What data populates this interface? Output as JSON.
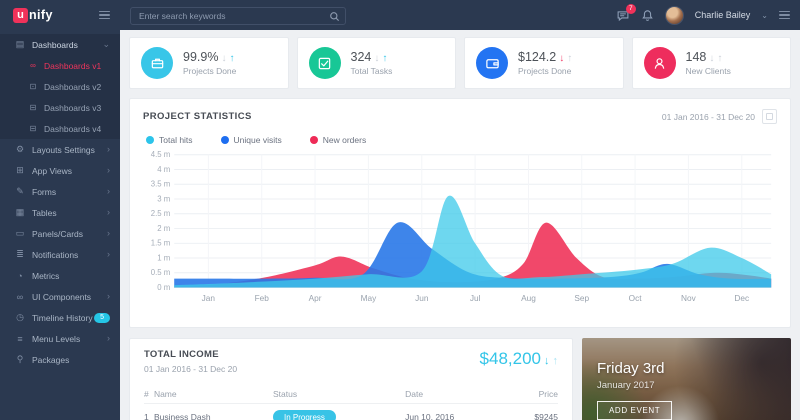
{
  "app": {
    "logo_mark": "u",
    "logo_rest": "nify"
  },
  "header": {
    "search_placeholder": "Enter search keywords",
    "messages_badge": "7",
    "user_name": "Charlie Bailey"
  },
  "sidebar": {
    "items": [
      {
        "label": "Dashboards",
        "icon": "grid",
        "chevron": "down",
        "children": [
          {
            "label": "Dashboards v1",
            "icon": "infinity",
            "active": true
          },
          {
            "label": "Dashboards v2",
            "icon": "monitor"
          },
          {
            "label": "Dashboards v3",
            "icon": "print"
          },
          {
            "label": "Dashboards v4",
            "icon": "print"
          }
        ]
      },
      {
        "label": "Layouts Settings",
        "icon": "gear",
        "chevron": "right"
      },
      {
        "label": "App Views",
        "icon": "windows",
        "chevron": "right"
      },
      {
        "label": "Forms",
        "icon": "pencil",
        "chevron": "right"
      },
      {
        "label": "Tables",
        "icon": "table",
        "chevron": "right"
      },
      {
        "label": "Panels/Cards",
        "icon": "panel",
        "chevron": "right"
      },
      {
        "label": "Notifications",
        "icon": "list",
        "chevron": "right"
      },
      {
        "label": "Metrics",
        "icon": "clock"
      },
      {
        "label": "UI Components",
        "icon": "infinity",
        "chevron": "right"
      },
      {
        "label": "Timeline History",
        "icon": "history",
        "badge": "5"
      },
      {
        "label": "Menu Levels",
        "icon": "menu",
        "chevron": "right"
      },
      {
        "label": "Packages",
        "icon": "key"
      }
    ]
  },
  "stats": {
    "cards": [
      {
        "icon": "briefcase",
        "icon_bg": "#38c6e8",
        "value": "99.9%",
        "label": "Projects Done",
        "down_color": "#ccd1d9",
        "up_color": "#38c6e8"
      },
      {
        "icon": "check",
        "icon_bg": "#18c796",
        "value": "324",
        "label": "Total Tasks",
        "down_color": "#ccd1d9",
        "up_color": "#38c6e8"
      },
      {
        "icon": "wallet",
        "icon_bg": "#2374f2",
        "value": "$124.2",
        "label": "Projects Done",
        "down_color": "#f0426b",
        "up_color": "#ccd1d9"
      },
      {
        "icon": "user",
        "icon_bg": "#ee2d5d",
        "value": "148",
        "label": "New Clients",
        "down_color": "#ccd1d9",
        "up_color": "#ccd1d9"
      }
    ]
  },
  "chart_data": {
    "type": "area",
    "title": "PROJECT STATISTICS",
    "date_range": "01 Jan 2016 - 31 Dec 20",
    "x_ticks": [
      "Jan",
      "Feb",
      "Apr",
      "May",
      "Jun",
      "Jul",
      "Aug",
      "Sep",
      "Oct",
      "Nov",
      "Dec"
    ],
    "y_ticks": [
      "0 m",
      "0.5 m",
      "1 m",
      "1.5 m",
      "2 m",
      "2.5 m",
      "3 m",
      "3.5 m",
      "4 m",
      "4.5 m"
    ],
    "ylim": [
      0,
      4.5
    ],
    "x_range": [
      -0.64,
      10.55
    ],
    "grid": true,
    "legend_position": "top-left",
    "series": [
      {
        "name": "Total hits",
        "dot": "#2cc4ea",
        "fill": "rgba(61,201,233,0.75)",
        "points": [
          [
            -0.64,
            0.08
          ],
          [
            0,
            0.12
          ],
          [
            1,
            0.2
          ],
          [
            2,
            0.3
          ],
          [
            3,
            0.45
          ],
          [
            4,
            0.55
          ],
          [
            4.5,
            3.1
          ],
          [
            5,
            1.5
          ],
          [
            5.5,
            0.4
          ],
          [
            6.2,
            0.35
          ],
          [
            7,
            0.45
          ],
          [
            8,
            0.6
          ],
          [
            8.7,
            0.8
          ],
          [
            9.4,
            1.35
          ],
          [
            10,
            1.0
          ],
          [
            10.55,
            0.45
          ]
        ]
      },
      {
        "name": "Unique visits",
        "dot": "#1e6ef0",
        "fill": "rgba(41,120,232,0.9)",
        "points": [
          [
            -0.64,
            0.3
          ],
          [
            0,
            0.3
          ],
          [
            1,
            0.3
          ],
          [
            2,
            0.33
          ],
          [
            2.9,
            0.45
          ],
          [
            3.55,
            2.2
          ],
          [
            4.2,
            1.3
          ],
          [
            4.9,
            0.5
          ],
          [
            5.6,
            0.32
          ],
          [
            6.5,
            0.3
          ],
          [
            7.5,
            0.35
          ],
          [
            8.1,
            0.5
          ],
          [
            8.6,
            0.8
          ],
          [
            9.2,
            0.45
          ],
          [
            9.8,
            0.3
          ],
          [
            10.55,
            0.3
          ]
        ]
      },
      {
        "name": "New orders",
        "dot": "#ee2b57",
        "fill": "rgba(240,62,98,0.95)",
        "points": [
          [
            -0.64,
            0.02
          ],
          [
            0,
            0.08
          ],
          [
            1,
            0.32
          ],
          [
            2,
            0.75
          ],
          [
            2.5,
            1.05
          ],
          [
            3.1,
            0.65
          ],
          [
            3.8,
            0.3
          ],
          [
            4.6,
            0.18
          ],
          [
            5.4,
            0.3
          ],
          [
            5.9,
            0.8
          ],
          [
            6.33,
            2.2
          ],
          [
            6.9,
            1.0
          ],
          [
            7.4,
            0.35
          ],
          [
            8,
            0.3
          ],
          [
            8.7,
            0.35
          ],
          [
            9.5,
            0.5
          ],
          [
            10.1,
            0.42
          ],
          [
            10.55,
            0.3
          ]
        ]
      }
    ]
  },
  "income": {
    "title": "TOTAL INCOME",
    "date_range": "01 Jan 2016 - 31 Dec 20",
    "amount": "$48,200",
    "table": {
      "headers": [
        "#",
        "Name",
        "Status",
        "Date",
        "Price"
      ],
      "rows": [
        {
          "num": "1",
          "name": "Business Dash",
          "status": "In Progress",
          "date": "Jun 10, 2016",
          "price": "$9245"
        }
      ]
    }
  },
  "event": {
    "day": "Friday 3rd",
    "date": "January 2017",
    "button": "ADD EVENT"
  }
}
